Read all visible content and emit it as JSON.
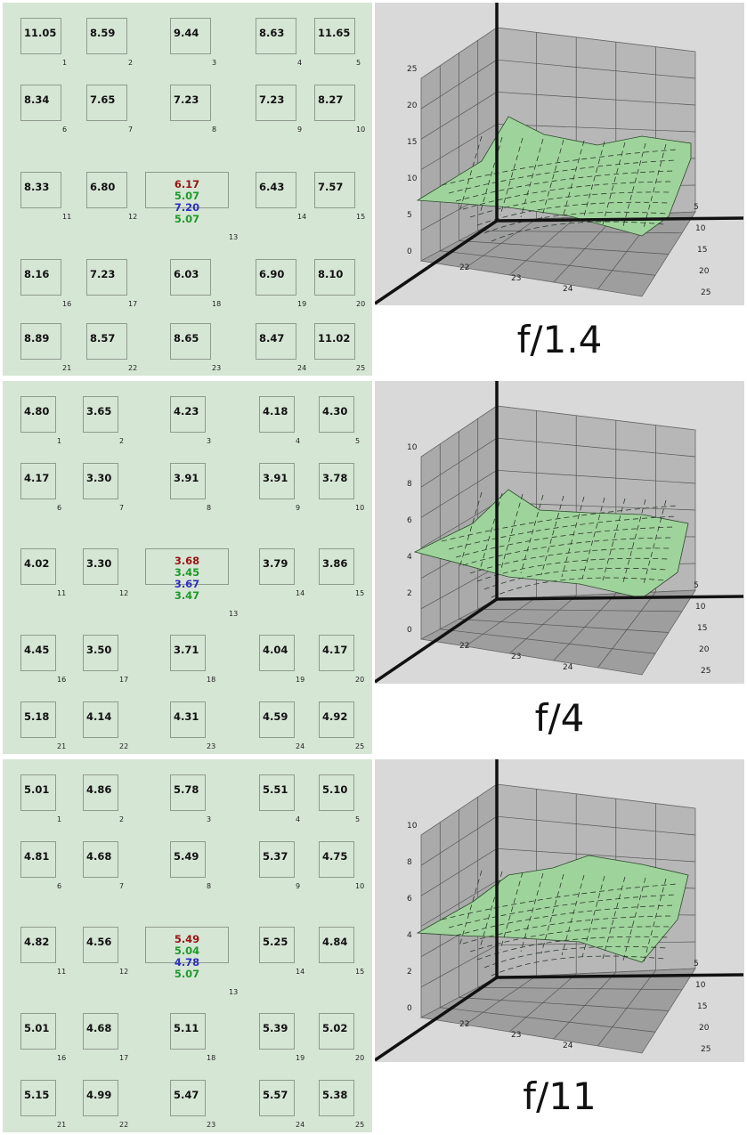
{
  "colors": {
    "red": "#9a1212",
    "green": "#1e9a2a",
    "blue": "#2e2ec0",
    "surface": "#9fd39c",
    "panel": "#d6e6d5"
  },
  "panels": [
    {
      "caption": "f/1.4",
      "chart_data": {
        "type": "surface",
        "z_ticks": [
          "0",
          "5",
          "10",
          "15",
          "20",
          "25"
        ],
        "x_ticks": [
          "22",
          "23",
          "24"
        ],
        "y_ticks": [
          "5",
          "10",
          "15",
          "20",
          "25"
        ],
        "zlim": [
          0,
          25
        ]
      },
      "cells": [
        {
          "v": "11.05",
          "n": "1"
        },
        {
          "v": "8.59",
          "n": "2"
        },
        {
          "v": "9.44",
          "n": "3"
        },
        {
          "v": "8.63",
          "n": "4"
        },
        {
          "v": "11.65",
          "n": "5"
        },
        {
          "v": "8.34",
          "n": "6"
        },
        {
          "v": "7.65",
          "n": "7"
        },
        {
          "v": "7.23",
          "n": "8"
        },
        {
          "v": "7.23",
          "n": "9"
        },
        {
          "v": "8.27",
          "n": "10"
        },
        {
          "v": "8.33",
          "n": "11"
        },
        {
          "v": "6.80",
          "n": "12"
        },
        {
          "v": "",
          "n": "13"
        },
        {
          "v": "6.43",
          "n": "14"
        },
        {
          "v": "7.57",
          "n": "15"
        },
        {
          "v": "8.16",
          "n": "16"
        },
        {
          "v": "7.23",
          "n": "17"
        },
        {
          "v": "6.03",
          "n": "18"
        },
        {
          "v": "6.90",
          "n": "19"
        },
        {
          "v": "8.10",
          "n": "20"
        },
        {
          "v": "8.89",
          "n": "21"
        },
        {
          "v": "8.57",
          "n": "22"
        },
        {
          "v": "8.65",
          "n": "23"
        },
        {
          "v": "8.47",
          "n": "24"
        },
        {
          "v": "11.02",
          "n": "25"
        }
      ],
      "center": [
        "6.17",
        "5.07",
        "7.20",
        "5.07"
      ]
    },
    {
      "caption": "f/4",
      "chart_data": {
        "type": "surface",
        "z_ticks": [
          "0",
          "2",
          "4",
          "6",
          "8",
          "10"
        ],
        "x_ticks": [
          "22",
          "23",
          "24"
        ],
        "y_ticks": [
          "5",
          "10",
          "15",
          "20",
          "25"
        ],
        "zlim": [
          0,
          10
        ]
      },
      "cells": [
        {
          "v": "4.80",
          "n": "1"
        },
        {
          "v": "3.65",
          "n": "2"
        },
        {
          "v": "4.23",
          "n": "3"
        },
        {
          "v": "4.18",
          "n": "4"
        },
        {
          "v": "4.30",
          "n": "5"
        },
        {
          "v": "4.17",
          "n": "6"
        },
        {
          "v": "3.30",
          "n": "7"
        },
        {
          "v": "3.91",
          "n": "8"
        },
        {
          "v": "3.91",
          "n": "9"
        },
        {
          "v": "3.78",
          "n": "10"
        },
        {
          "v": "4.02",
          "n": "11"
        },
        {
          "v": "3.30",
          "n": "12"
        },
        {
          "v": "",
          "n": "13"
        },
        {
          "v": "3.79",
          "n": "14"
        },
        {
          "v": "3.86",
          "n": "15"
        },
        {
          "v": "4.45",
          "n": "16"
        },
        {
          "v": "3.50",
          "n": "17"
        },
        {
          "v": "3.71",
          "n": "18"
        },
        {
          "v": "4.04",
          "n": "19"
        },
        {
          "v": "4.17",
          "n": "20"
        },
        {
          "v": "5.18",
          "n": "21"
        },
        {
          "v": "4.14",
          "n": "22"
        },
        {
          "v": "4.31",
          "n": "23"
        },
        {
          "v": "4.59",
          "n": "24"
        },
        {
          "v": "4.92",
          "n": "25"
        }
      ],
      "center": [
        "3.68",
        "3.45",
        "3.67",
        "3.47"
      ]
    },
    {
      "caption": "f/11",
      "chart_data": {
        "type": "surface",
        "z_ticks": [
          "0",
          "2",
          "4",
          "6",
          "8",
          "10"
        ],
        "x_ticks": [
          "22",
          "23",
          "24"
        ],
        "y_ticks": [
          "5",
          "10",
          "15",
          "20",
          "25"
        ],
        "zlim": [
          0,
          10
        ]
      },
      "cells": [
        {
          "v": "5.01",
          "n": "1"
        },
        {
          "v": "4.86",
          "n": "2"
        },
        {
          "v": "5.78",
          "n": "3"
        },
        {
          "v": "5.51",
          "n": "4"
        },
        {
          "v": "5.10",
          "n": "5"
        },
        {
          "v": "4.81",
          "n": "6"
        },
        {
          "v": "4.68",
          "n": "7"
        },
        {
          "v": "5.49",
          "n": "8"
        },
        {
          "v": "5.37",
          "n": "9"
        },
        {
          "v": "4.75",
          "n": "10"
        },
        {
          "v": "4.82",
          "n": "11"
        },
        {
          "v": "4.56",
          "n": "12"
        },
        {
          "v": "",
          "n": "13"
        },
        {
          "v": "5.25",
          "n": "14"
        },
        {
          "v": "4.84",
          "n": "15"
        },
        {
          "v": "5.01",
          "n": "16"
        },
        {
          "v": "4.68",
          "n": "17"
        },
        {
          "v": "5.11",
          "n": "18"
        },
        {
          "v": "5.39",
          "n": "19"
        },
        {
          "v": "5.02",
          "n": "20"
        },
        {
          "v": "5.15",
          "n": "21"
        },
        {
          "v": "4.99",
          "n": "22"
        },
        {
          "v": "5.47",
          "n": "23"
        },
        {
          "v": "5.57",
          "n": "24"
        },
        {
          "v": "5.38",
          "n": "25"
        }
      ],
      "center": [
        "5.49",
        "5.04",
        "4.78",
        "5.07"
      ]
    }
  ]
}
